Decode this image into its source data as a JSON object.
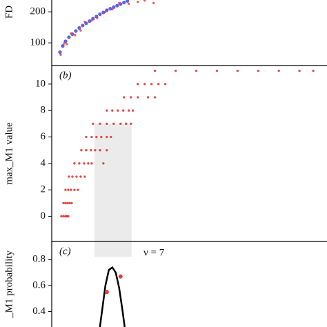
{
  "chart_data": [
    {
      "type": "scatter",
      "ylabel": "FD",
      "xlim": [
        0,
        400
      ],
      "ylim": [
        27,
        238
      ],
      "yticks": [
        100,
        200
      ],
      "series": [
        {
          "name": "blue",
          "color": "#3a3ad8",
          "x": [
            12,
            16,
            20,
            25,
            30,
            35,
            40,
            45,
            50,
            55,
            60,
            65,
            70,
            75,
            80,
            85,
            90,
            95,
            100,
            105,
            110
          ],
          "values": [
            70,
            90,
            105,
            118,
            128,
            138,
            148,
            156,
            163,
            170,
            178,
            185,
            192,
            198,
            205,
            210,
            215,
            220,
            225,
            230,
            235
          ]
        },
        {
          "name": "red",
          "color": "#e63a3a",
          "x": [
            13,
            18,
            22,
            28,
            34,
            42,
            48,
            58,
            66,
            78,
            88,
            98,
            112,
            125,
            135,
            148
          ],
          "values": [
            62,
            98,
            96,
            130,
            125,
            140,
            168,
            172,
            180,
            200,
            208,
            228,
            226,
            232,
            236,
            228
          ]
        }
      ]
    },
    {
      "type": "scatter",
      "tag": "(b)",
      "ylabel": "max_M1 value",
      "xlim": [
        0,
        400
      ],
      "ylim": [
        -1.9,
        11.4
      ],
      "yticks": [
        0,
        2,
        4,
        6,
        8,
        10
      ],
      "band": {
        "x": [
          62,
          116
        ],
        "top": 7
      },
      "series": [
        {
          "name": "max",
          "color": "#e02020",
          "x": [
            14,
            17,
            20,
            22,
            24,
            17,
            20,
            23,
            26,
            29,
            20,
            24,
            28,
            33,
            38,
            25,
            30,
            36,
            42,
            48,
            33,
            40,
            47,
            53,
            58,
            75,
            43,
            50,
            57,
            63,
            70,
            80,
            50,
            58,
            65,
            72,
            80,
            86,
            60,
            70,
            80,
            90,
            100,
            108,
            115,
            80,
            88,
            96,
            104,
            112,
            118,
            105,
            115,
            125,
            140,
            150,
            125,
            135,
            145,
            155,
            165,
            150,
            180,
            210,
            240,
            270,
            300,
            330,
            360,
            380
          ],
          "values": [
            0,
            0,
            0,
            0,
            0,
            1,
            1,
            1,
            1,
            1,
            2,
            2,
            2,
            2,
            2,
            3,
            3,
            3,
            3,
            3,
            4,
            4,
            4,
            4,
            4,
            4,
            5,
            5,
            5,
            5,
            5,
            5,
            6,
            6,
            6,
            6,
            6,
            6,
            7,
            7,
            7,
            7,
            7,
            7,
            7,
            8,
            8,
            8,
            8,
            8,
            8,
            9,
            9,
            9,
            9,
            9,
            10,
            10,
            10,
            10,
            10,
            11,
            11,
            11,
            11,
            11,
            11,
            11,
            11,
            11
          ]
        }
      ]
    },
    {
      "type": "line",
      "tag": "(c)",
      "ylabel": "_M1 probability",
      "annotation": "ν = 7",
      "xlim": [
        0,
        400
      ],
      "ylim": [
        0.28,
        0.94
      ],
      "yticks": [
        0.4,
        0.6,
        0.8
      ],
      "band": {
        "x": [
          62,
          116
        ],
        "bottom": 0.82
      },
      "series": [
        {
          "name": "fit",
          "color": "#000000",
          "x": [
            70,
            73,
            78,
            83,
            88,
            93,
            98,
            103,
            106
          ],
          "values": [
            0.28,
            0.4,
            0.6,
            0.72,
            0.74,
            0.7,
            0.58,
            0.4,
            0.28
          ]
        }
      ],
      "points": {
        "color": "#e63a3a",
        "x": [
          80,
          100
        ],
        "values": [
          0.55,
          0.67
        ]
      }
    }
  ]
}
